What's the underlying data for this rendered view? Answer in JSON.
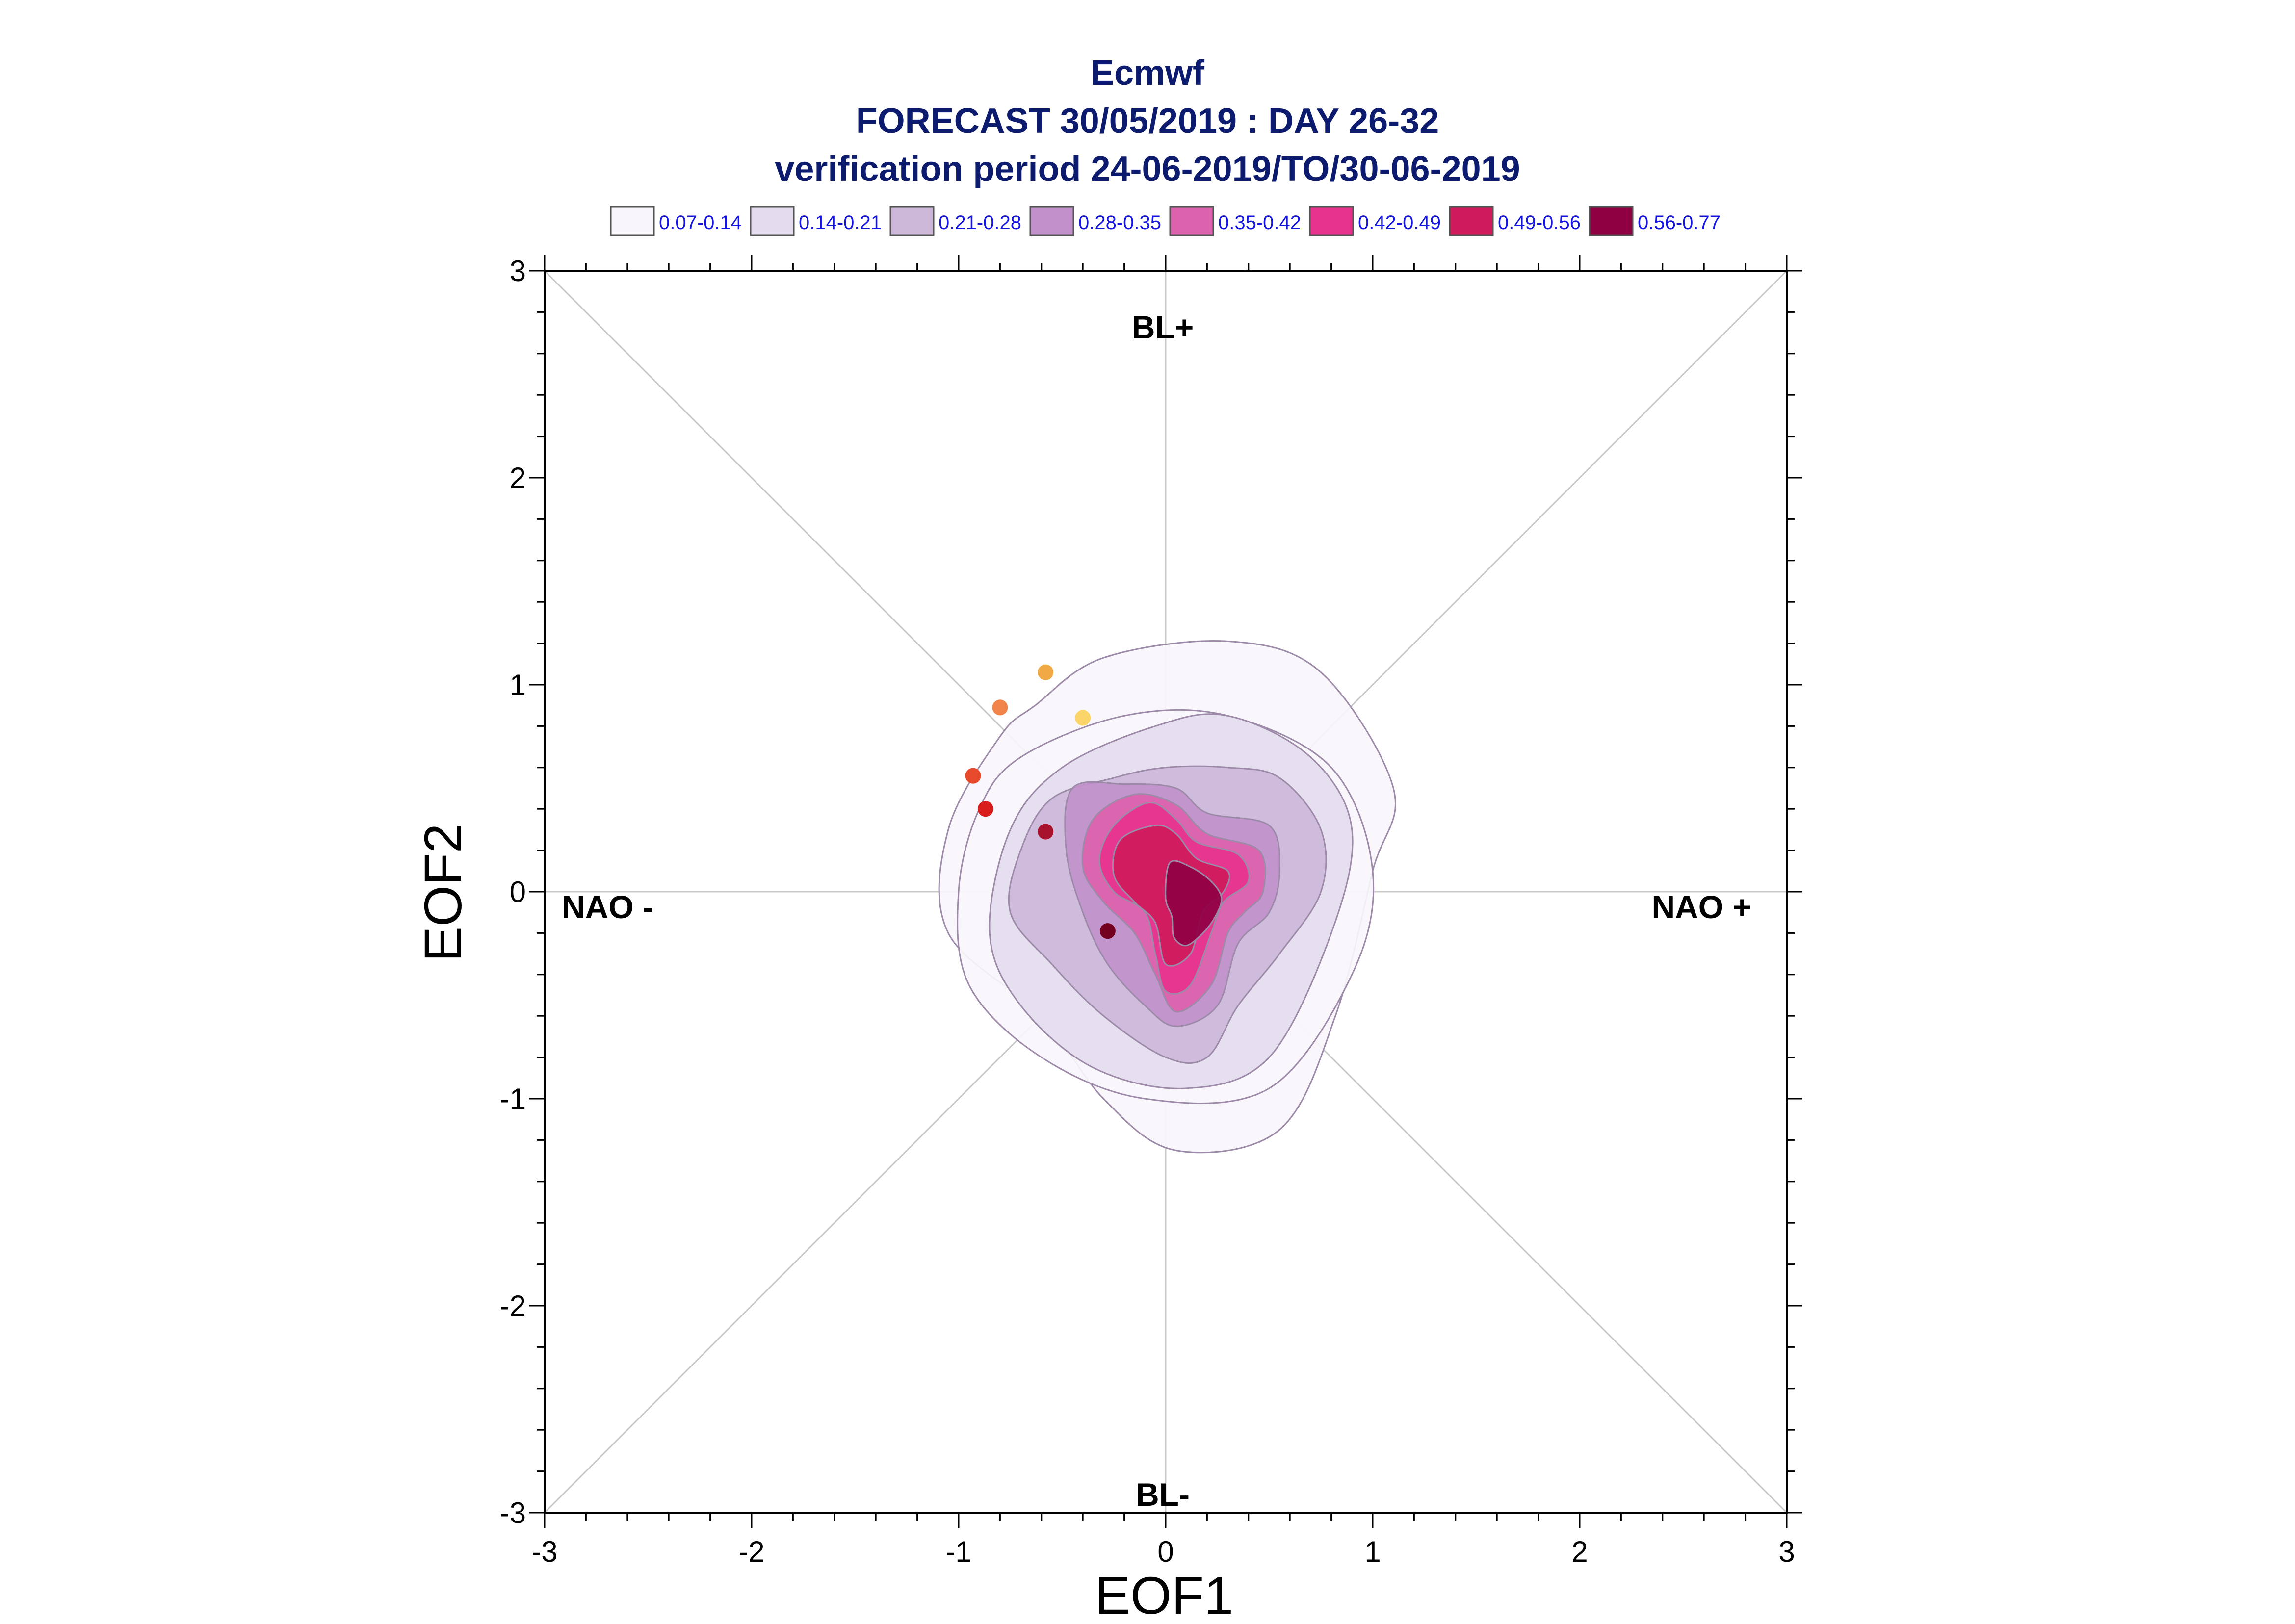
{
  "chart_data": {
    "type": "scatter",
    "title_lines": [
      "Ecmwf",
      "FORECAST 30/05/2019 : DAY 26-32",
      "verification period 24-06-2019/TO/30-06-2019"
    ],
    "xlabel": "EOF1",
    "ylabel": "EOF2",
    "xlim": [
      -3,
      3
    ],
    "ylim": [
      -3,
      3
    ],
    "xticks": [
      "-3",
      "-2",
      "-1",
      "0",
      "1",
      "2",
      "3"
    ],
    "yticks": [
      "-3",
      "-2",
      "-1",
      "0",
      "1",
      "2",
      "3"
    ],
    "grid": false,
    "region_labels": {
      "top": "BL+",
      "bottom": "BL-",
      "left": "NAO -",
      "right": "NAO +"
    },
    "legend": {
      "placement": "top",
      "entries": [
        {
          "label": "0.07-0.14",
          "color": "#f8f6fb"
        },
        {
          "label": "0.14-0.21",
          "color": "#e4dcee"
        },
        {
          "label": "0.21-0.28",
          "color": "#cdb8da"
        },
        {
          "label": "0.28-0.35",
          "color": "#c291cb"
        },
        {
          "label": "0.35-0.42",
          "color": "#dd62ad"
        },
        {
          "label": "0.42-0.49",
          "color": "#e7328d"
        },
        {
          "label": "0.49-0.56",
          "color": "#cf1a5c"
        },
        {
          "label": "0.56-0.77",
          "color": "#8f0043"
        }
      ]
    },
    "density_contours": [
      {
        "level": "0.07-0.14",
        "color": "#f8f6fb",
        "points": [
          [
            -0.63,
            0.9
          ],
          [
            -0.3,
            1.13
          ],
          [
            0.3,
            1.21
          ],
          [
            0.75,
            1.06
          ],
          [
            1.1,
            0.5
          ],
          [
            1.0,
            0.1
          ],
          [
            0.82,
            -0.6
          ],
          [
            0.55,
            -1.15
          ],
          [
            0.05,
            -1.25
          ],
          [
            -0.3,
            -1.0
          ],
          [
            -0.6,
            -0.6
          ],
          [
            -1.05,
            -0.2
          ],
          [
            -1.05,
            0.3
          ],
          [
            -0.8,
            0.75
          ]
        ]
      },
      {
        "level": "0.07-0.14",
        "color": "#f8f6fb",
        "points": [
          [
            -0.7,
            0.65
          ],
          [
            -0.2,
            0.85
          ],
          [
            0.3,
            0.85
          ],
          [
            0.8,
            0.6
          ],
          [
            1.0,
            0.1
          ],
          [
            0.9,
            -0.4
          ],
          [
            0.5,
            -0.95
          ],
          [
            -0.1,
            -1.0
          ],
          [
            -0.6,
            -0.8
          ],
          [
            -0.95,
            -0.45
          ],
          [
            -1.0,
            0.0
          ],
          [
            -0.9,
            0.4
          ]
        ]
      },
      {
        "level": "0.14-0.21",
        "color": "#e4dcee",
        "points": [
          [
            -0.5,
            0.6
          ],
          [
            -0.05,
            0.8
          ],
          [
            0.3,
            0.85
          ],
          [
            0.7,
            0.65
          ],
          [
            0.9,
            0.3
          ],
          [
            0.8,
            -0.2
          ],
          [
            0.5,
            -0.8
          ],
          [
            0.1,
            -0.95
          ],
          [
            -0.35,
            -0.85
          ],
          [
            -0.7,
            -0.55
          ],
          [
            -0.85,
            -0.2
          ],
          [
            -0.75,
            0.3
          ]
        ]
      },
      {
        "level": "0.21-0.28",
        "color": "#cdb8da",
        "points": [
          [
            -0.55,
            0.45
          ],
          [
            -0.25,
            0.55
          ],
          [
            0.0,
            0.6
          ],
          [
            0.3,
            0.6
          ],
          [
            0.55,
            0.55
          ],
          [
            0.75,
            0.3
          ],
          [
            0.75,
            0.0
          ],
          [
            0.55,
            -0.3
          ],
          [
            0.35,
            -0.55
          ],
          [
            0.2,
            -0.8
          ],
          [
            0.0,
            -0.8
          ],
          [
            -0.3,
            -0.6
          ],
          [
            -0.55,
            -0.35
          ],
          [
            -0.75,
            -0.1
          ],
          [
            -0.7,
            0.2
          ]
        ]
      },
      {
        "level": "0.28-0.35",
        "color": "#c291cb",
        "points": [
          [
            -0.45,
            0.5
          ],
          [
            -0.2,
            0.52
          ],
          [
            0.05,
            0.5
          ],
          [
            0.2,
            0.38
          ],
          [
            0.5,
            0.32
          ],
          [
            0.55,
            0.1
          ],
          [
            0.5,
            -0.1
          ],
          [
            0.35,
            -0.25
          ],
          [
            0.25,
            -0.55
          ],
          [
            0.05,
            -0.65
          ],
          [
            -0.1,
            -0.55
          ],
          [
            -0.28,
            -0.35
          ],
          [
            -0.4,
            -0.1
          ],
          [
            -0.48,
            0.2
          ]
        ]
      },
      {
        "level": "0.35-0.42",
        "color": "#dd62ad",
        "points": [
          [
            -0.35,
            0.35
          ],
          [
            -0.15,
            0.47
          ],
          [
            0.05,
            0.42
          ],
          [
            0.2,
            0.28
          ],
          [
            0.45,
            0.2
          ],
          [
            0.47,
            0.0
          ],
          [
            0.38,
            -0.1
          ],
          [
            0.3,
            -0.2
          ],
          [
            0.22,
            -0.45
          ],
          [
            0.05,
            -0.58
          ],
          [
            -0.05,
            -0.4
          ],
          [
            -0.15,
            -0.2
          ],
          [
            -0.3,
            -0.05
          ],
          [
            -0.4,
            0.12
          ]
        ]
      },
      {
        "level": "0.42-0.49",
        "color": "#e7328d",
        "points": [
          [
            -0.25,
            0.32
          ],
          [
            -0.08,
            0.43
          ],
          [
            0.05,
            0.35
          ],
          [
            0.15,
            0.24
          ],
          [
            0.35,
            0.18
          ],
          [
            0.4,
            0.05
          ],
          [
            0.28,
            -0.05
          ],
          [
            0.22,
            -0.2
          ],
          [
            0.12,
            -0.45
          ],
          [
            0.0,
            -0.48
          ],
          [
            -0.05,
            -0.3
          ],
          [
            -0.1,
            -0.1
          ],
          [
            -0.25,
            0.0
          ],
          [
            -0.32,
            0.15
          ]
        ]
      },
      {
        "level": "0.49-0.56",
        "color": "#cf1a5c",
        "points": [
          [
            -0.22,
            0.25
          ],
          [
            -0.05,
            0.32
          ],
          [
            0.05,
            0.28
          ],
          [
            0.15,
            0.16
          ],
          [
            0.3,
            0.1
          ],
          [
            0.28,
            0.0
          ],
          [
            0.18,
            -0.1
          ],
          [
            0.12,
            -0.3
          ],
          [
            0.0,
            -0.35
          ],
          [
            -0.05,
            -0.15
          ],
          [
            -0.15,
            -0.05
          ],
          [
            -0.25,
            0.08
          ]
        ]
      },
      {
        "level": "0.56-0.77",
        "color": "#8f0043",
        "points": [
          [
            0.02,
            0.14
          ],
          [
            0.12,
            0.12
          ],
          [
            0.22,
            0.05
          ],
          [
            0.27,
            -0.03
          ],
          [
            0.24,
            -0.12
          ],
          [
            0.18,
            -0.2
          ],
          [
            0.1,
            -0.26
          ],
          [
            0.04,
            -0.22
          ],
          [
            0.03,
            -0.12
          ],
          [
            0.0,
            -0.03
          ]
        ]
      }
    ],
    "daily_points": [
      {
        "x": -0.58,
        "y": 1.06,
        "color": "#f0a945"
      },
      {
        "x": -0.4,
        "y": 0.84,
        "color": "#fbd56a"
      },
      {
        "x": -0.8,
        "y": 0.89,
        "color": "#f1844a"
      },
      {
        "x": -0.93,
        "y": 0.56,
        "color": "#e84a2d"
      },
      {
        "x": -0.87,
        "y": 0.4,
        "color": "#d91c1c"
      },
      {
        "x": -0.58,
        "y": 0.29,
        "color": "#a8122c"
      },
      {
        "x": -0.28,
        "y": -0.19,
        "color": "#72001e"
      }
    ]
  }
}
